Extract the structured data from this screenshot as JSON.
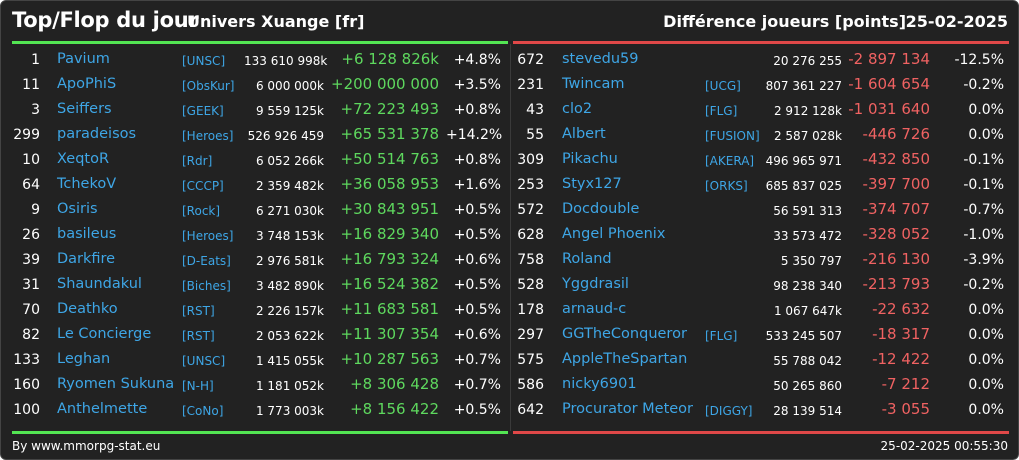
{
  "header": {
    "title": "Top/Flop du jour",
    "universe": "Univers Xuange [fr]",
    "difference": "Différence joueurs [points]",
    "date": "25-02-2025"
  },
  "top": [
    {
      "rank": "1",
      "name": "Pavium",
      "alliance": "[UNSC]",
      "points": "133 610 998k",
      "diff": "+6 128 826k",
      "pct": "+4.8%"
    },
    {
      "rank": "11",
      "name": "ApoPhiS",
      "alliance": "[ObsKur]",
      "points": "6 000 000k",
      "diff": "+200 000 000",
      "pct": "+3.5%"
    },
    {
      "rank": "3",
      "name": "Seiffers",
      "alliance": "[GEEK]",
      "points": "9 559 125k",
      "diff": "+72 223 493",
      "pct": "+0.8%"
    },
    {
      "rank": "299",
      "name": "paradeisos",
      "alliance": "[Heroes]",
      "points": "526 926 459",
      "diff": "+65 531 378",
      "pct": "+14.2%"
    },
    {
      "rank": "10",
      "name": "XeqtoR",
      "alliance": "[Rdr]",
      "points": "6 052 266k",
      "diff": "+50 514 763",
      "pct": "+0.8%"
    },
    {
      "rank": "64",
      "name": "TchekoV",
      "alliance": "[CCCP]",
      "points": "2 359 482k",
      "diff": "+36 058 953",
      "pct": "+1.6%"
    },
    {
      "rank": "9",
      "name": "Osiris",
      "alliance": "[Rock]",
      "points": "6 271 030k",
      "diff": "+30 843 951",
      "pct": "+0.5%"
    },
    {
      "rank": "26",
      "name": "basileus",
      "alliance": "[Heroes]",
      "points": "3 748 153k",
      "diff": "+16 829 340",
      "pct": "+0.5%"
    },
    {
      "rank": "39",
      "name": "Darkfire",
      "alliance": "[D-Eats]",
      "points": "2 976 581k",
      "diff": "+16 793 324",
      "pct": "+0.6%"
    },
    {
      "rank": "31",
      "name": "Shaundakul",
      "alliance": "[Biches]",
      "points": "3 482 890k",
      "diff": "+16 524 382",
      "pct": "+0.5%"
    },
    {
      "rank": "70",
      "name": "Deathko",
      "alliance": "[RST]",
      "points": "2 226 157k",
      "diff": "+11 683 581",
      "pct": "+0.5%"
    },
    {
      "rank": "82",
      "name": "Le Concierge",
      "alliance": "[RST]",
      "points": "2 053 622k",
      "diff": "+11 307 354",
      "pct": "+0.6%"
    },
    {
      "rank": "133",
      "name": "Leghan",
      "alliance": "[UNSC]",
      "points": "1 415 055k",
      "diff": "+10 287 563",
      "pct": "+0.7%"
    },
    {
      "rank": "160",
      "name": "Ryomen Sukuna",
      "alliance": "[N-H]",
      "points": "1 181 052k",
      "diff": "+8 306 428",
      "pct": "+0.7%"
    },
    {
      "rank": "100",
      "name": "Anthelmette",
      "alliance": "[CoNo]",
      "points": "1 773 003k",
      "diff": "+8 156 422",
      "pct": "+0.5%"
    }
  ],
  "flop": [
    {
      "rank": "672",
      "name": "stevedu59",
      "alliance": "",
      "points": "20 276 255",
      "diff": "-2 897 134",
      "pct": "-12.5%"
    },
    {
      "rank": "231",
      "name": "Twincam",
      "alliance": "[UCG]",
      "points": "807 361 227",
      "diff": "-1 604 654",
      "pct": "-0.2%"
    },
    {
      "rank": "43",
      "name": "clo2",
      "alliance": "[FLG]",
      "points": "2 912 128k",
      "diff": "-1 031 640",
      "pct": "0.0%"
    },
    {
      "rank": "55",
      "name": "Albert",
      "alliance": "[FUSION]",
      "points": "2 587 028k",
      "diff": "-446 726",
      "pct": "0.0%"
    },
    {
      "rank": "309",
      "name": "Pikachu",
      "alliance": "[AKERA]",
      "points": "496 965 971",
      "diff": "-432 850",
      "pct": "-0.1%"
    },
    {
      "rank": "253",
      "name": "Styx127",
      "alliance": "[ORKS]",
      "points": "685 837 025",
      "diff": "-397 700",
      "pct": "-0.1%"
    },
    {
      "rank": "572",
      "name": "Docdouble",
      "alliance": "",
      "points": "56 591 313",
      "diff": "-374 707",
      "pct": "-0.7%"
    },
    {
      "rank": "628",
      "name": "Angel Phoenix",
      "alliance": "",
      "points": "33 573 472",
      "diff": "-328 052",
      "pct": "-1.0%"
    },
    {
      "rank": "758",
      "name": "Roland",
      "alliance": "",
      "points": "5 350 797",
      "diff": "-216 130",
      "pct": "-3.9%"
    },
    {
      "rank": "528",
      "name": "Yggdrasil",
      "alliance": "",
      "points": "98 238 340",
      "diff": "-213 793",
      "pct": "-0.2%"
    },
    {
      "rank": "178",
      "name": "arnaud-c",
      "alliance": "",
      "points": "1 067 647k",
      "diff": "-22 632",
      "pct": "0.0%"
    },
    {
      "rank": "297",
      "name": "GGTheConqueror",
      "alliance": "[FLG]",
      "points": "533 245 507",
      "diff": "-18 317",
      "pct": "0.0%"
    },
    {
      "rank": "575",
      "name": "AppleTheSpartan",
      "alliance": "",
      "points": "55 788 042",
      "diff": "-12 422",
      "pct": "0.0%"
    },
    {
      "rank": "586",
      "name": "nicky6901",
      "alliance": "",
      "points": "50 265 860",
      "diff": "-7 212",
      "pct": "0.0%"
    },
    {
      "rank": "642",
      "name": "Procurator Meteor",
      "alliance": "[DIGGY]",
      "points": "28 139 514",
      "diff": "-3 055",
      "pct": "0.0%"
    }
  ],
  "footer": {
    "credit": "By www.mmorpg-stat.eu",
    "timestamp": "25-02-2025 00:55:30"
  },
  "colors": {
    "background": "#222222",
    "gain": "#5ed85e",
    "loss": "#f06262",
    "link": "#3ea6e6"
  }
}
